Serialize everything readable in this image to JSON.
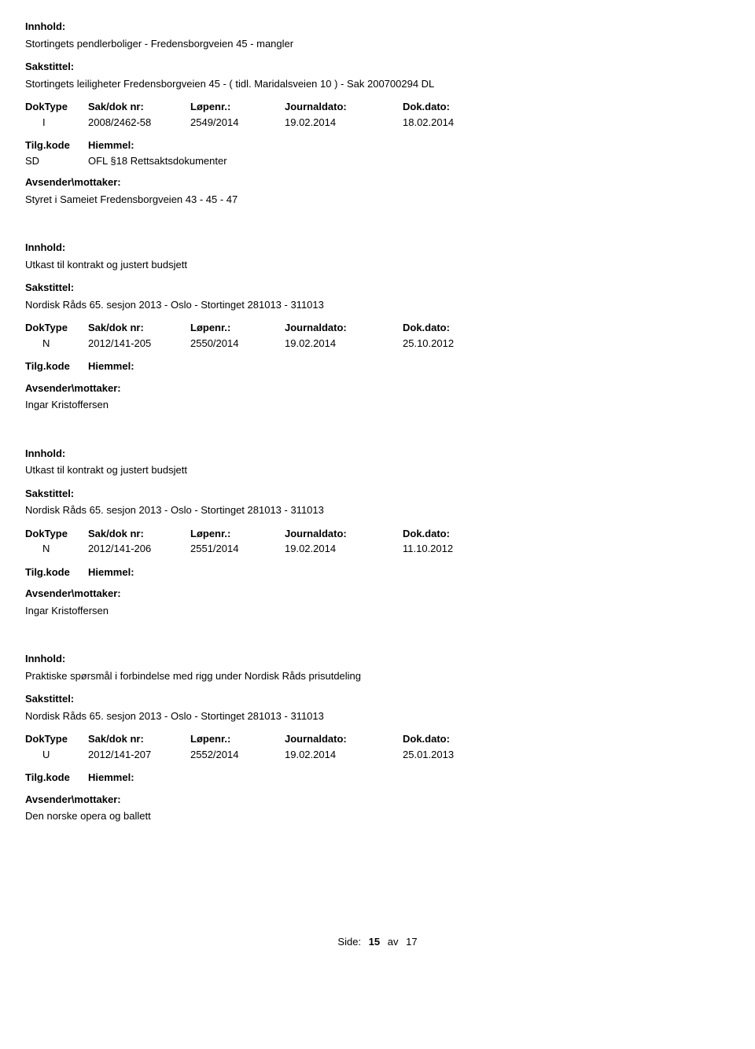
{
  "labels": {
    "innhold": "Innhold:",
    "sakstittel": "Sakstittel:",
    "doktype": "DokType",
    "sakdok": "Sak/dok nr:",
    "lopenr": "Løpenr.:",
    "journaldato": "Journaldato:",
    "dokdato": "Dok.dato:",
    "tilgkode": "Tilg.kode",
    "hiemmel": "Hiemmel:",
    "avsender": "Avsender\\mottaker:"
  },
  "entries": [
    {
      "innhold": "Stortingets pendlerboliger - Fredensborgveien 45 - mangler",
      "sakstittel": "Stortingets leiligheter Fredensborgveien 45 - ( tidl. Maridalsveien 10  ) - Sak 200700294 DL",
      "doktype": "I",
      "sakdok": "2008/2462-58",
      "lopenr": "2549/2014",
      "journaldato": "19.02.2014",
      "dokdato": "18.02.2014",
      "tilgkode": "SD",
      "hiemmel": "OFL §18 Rettsaktsdokumenter",
      "avsender": "Styret i Sameiet Fredensborgveien 43 - 45 - 47"
    },
    {
      "innhold": "Utkast til kontrakt og justert budsjett",
      "sakstittel": "Nordisk Råds 65. sesjon 2013 - Oslo - Stortinget 281013 - 311013",
      "doktype": "N",
      "sakdok": "2012/141-205",
      "lopenr": "2550/2014",
      "journaldato": "19.02.2014",
      "dokdato": "25.10.2012",
      "tilgkode": "",
      "hiemmel": "",
      "avsender": "Ingar Kristoffersen"
    },
    {
      "innhold": "Utkast til kontrakt og justert budsjett",
      "sakstittel": "Nordisk Råds 65. sesjon 2013 - Oslo - Stortinget 281013 - 311013",
      "doktype": "N",
      "sakdok": "2012/141-206",
      "lopenr": "2551/2014",
      "journaldato": "19.02.2014",
      "dokdato": "11.10.2012",
      "tilgkode": "",
      "hiemmel": "",
      "avsender": "Ingar Kristoffersen"
    },
    {
      "innhold": "Praktiske spørsmål i forbindelse med rigg under Nordisk Råds prisutdeling",
      "sakstittel": "Nordisk Råds 65. sesjon 2013 - Oslo - Stortinget 281013 - 311013",
      "doktype": "U",
      "sakdok": "2012/141-207",
      "lopenr": "2552/2014",
      "journaldato": "19.02.2014",
      "dokdato": "25.01.2013",
      "tilgkode": "",
      "hiemmel": "",
      "avsender": "Den norske opera og ballett"
    }
  ],
  "footer": {
    "label": "Side:",
    "page": "15",
    "sep": "av",
    "total": "17"
  }
}
